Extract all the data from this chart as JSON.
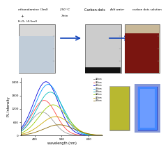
{
  "background_color": "#ffffff",
  "top_label1": "ethanolamine (3ml)",
  "top_label2": "+",
  "top_label3": "H₂O₂ (4.5ml)",
  "arrow1_top": "250 °C",
  "arrow1_bot": "7min",
  "mid_label": "Carbon dots",
  "arrow2_label": "Add water",
  "right_label": "carbon dots solution",
  "plot_xlabel": "wavelength (nm)",
  "plot_ylabel": "PL Intensity",
  "plot_xlim": [
    350,
    650
  ],
  "plot_ylim": [
    0,
    2600
  ],
  "plot_yticks": [
    0,
    600,
    1200,
    1800,
    2400
  ],
  "legend_labels": [
    "320nm",
    "340nm",
    "360nm",
    "380nm",
    "400nm",
    "420nm",
    "440nm",
    "460nm"
  ],
  "curve_colors": [
    "#999999",
    "#ff4444",
    "#0000dd",
    "#0099ff",
    "#00bbbb",
    "#99cc00",
    "#ccaa00",
    "#886600"
  ],
  "peak_wavelengths": [
    428,
    435,
    442,
    450,
    458,
    468,
    478,
    490
  ],
  "peak_heights": [
    1050,
    1580,
    2420,
    2300,
    1950,
    1380,
    850,
    480
  ],
  "peak_sigmas": [
    42,
    44,
    46,
    48,
    50,
    52,
    54,
    56
  ],
  "beaker1_body": "#b8b8b8",
  "beaker1_liquid": "#c8d0d8",
  "beaker2_body": "#c0c0c0",
  "beaker2_powder": "#1a1a1a",
  "beaker3_body": "#d8c8b0",
  "beaker3_liquid": "#7a1510",
  "cuvette_left": "#b8b840",
  "cuvette_right": "#3366ff",
  "cuvette_bg": "#050510"
}
